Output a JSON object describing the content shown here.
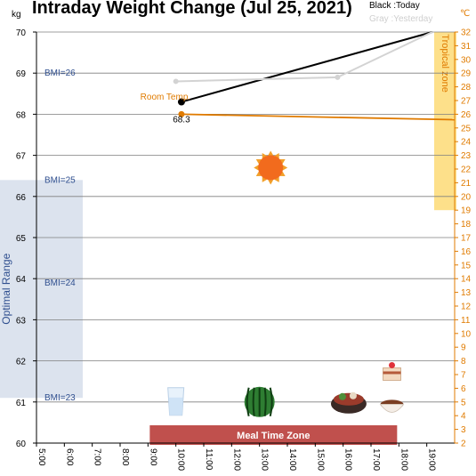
{
  "chart_data": {
    "type": "line",
    "title": "Intraday Weight Change (Jul 25, 2021)",
    "left_unit": "kg",
    "right_unit": "℃",
    "x_ticks": [
      "5:00",
      "6:00",
      "7:00",
      "8:00",
      "9:00",
      "10:00",
      "11:00",
      "12:00",
      "13:00",
      "14:00",
      "15:00",
      "16:00",
      "17:00",
      "18:00",
      "19:00"
    ],
    "xlim": [
      5,
      20
    ],
    "ylim_left": [
      60,
      70
    ],
    "ylim_right": [
      2,
      32
    ],
    "y_ticks_left": [
      60,
      61,
      62,
      63,
      64,
      65,
      66,
      67,
      68,
      69,
      70
    ],
    "y_ticks_right": [
      2,
      3,
      4,
      5,
      6,
      7,
      8,
      9,
      10,
      11,
      12,
      13,
      14,
      15,
      16,
      17,
      18,
      19,
      20,
      21,
      22,
      23,
      24,
      25,
      26,
      27,
      28,
      29,
      30,
      31,
      32
    ],
    "legend": {
      "today": "Black :Today",
      "yesterday": "Gray :Yesterday"
    },
    "series": [
      {
        "name": "Today",
        "color": "#000000",
        "x": [
          10.2,
          19.2
        ],
        "y": [
          68.3,
          70.0
        ],
        "axis": "left",
        "marker_first": true
      },
      {
        "name": "Yesterday",
        "color": "#d3d3d3",
        "x": [
          10.0,
          15.8,
          19.2
        ],
        "y": [
          68.8,
          68.9,
          70.0
        ],
        "axis": "left"
      },
      {
        "name": "Room Temp.",
        "color": "#e07b00",
        "x": [
          10.2,
          20.0
        ],
        "y": [
          26.0,
          25.6
        ],
        "axis": "right"
      }
    ],
    "data_labels": [
      {
        "text": "68.3",
        "x": 10.2,
        "y": 67.95
      }
    ],
    "room_temp_label": {
      "text": "Room Temp.",
      "x": 8.5,
      "y": 27.0
    },
    "bmi_lines": [
      {
        "label": "BMI=26",
        "value": 69.0
      },
      {
        "label": "BMI=25",
        "value": 66.4
      },
      {
        "label": "BMI=24",
        "value": 63.9
      },
      {
        "label": "BMI=23",
        "value": 61.1
      }
    ],
    "optimal_range": {
      "label": "Optimal Range",
      "from": 61.1,
      "to": 66.4
    },
    "tropical_zone": {
      "label": "Tropical zone",
      "from_temp": 19.0,
      "to_temp": 32.0
    },
    "meal_zone": {
      "label": "Meal Time Zone",
      "from": 9.0,
      "to": 18.0
    },
    "icons": [
      {
        "name": "sun-icon",
        "x": 13.4,
        "y": 66.7
      },
      {
        "name": "water-glass-icon",
        "x": 10.0,
        "y": 61.0
      },
      {
        "name": "watermelon-icon",
        "x": 13.0,
        "y": 61.0
      },
      {
        "name": "hotpot-icon",
        "x": 16.2,
        "y": 61.0
      },
      {
        "name": "dessert-icon",
        "x": 17.75,
        "y": 61.7
      },
      {
        "name": "soup-bowl-icon",
        "x": 17.75,
        "y": 60.9
      }
    ],
    "colors": {
      "grid": "#7f7f7f",
      "optimal_band": "#dce3ee",
      "tropical_band": "#fde08a",
      "meal_band": "#c0504d",
      "right_axis": "#e07b00",
      "bmi_text": "#2f4f8f"
    },
    "grid": true
  }
}
